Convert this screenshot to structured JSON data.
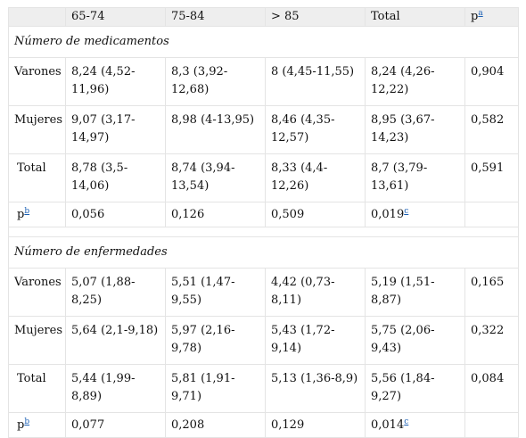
{
  "header": {
    "cols": [
      "",
      "65-74",
      "75-84",
      "> 85",
      "Total",
      "p"
    ],
    "p_sup": "a"
  },
  "sections": [
    {
      "title": "Número de medicamentos",
      "rows": [
        {
          "label": "Varones",
          "values": [
            "8,24 (4,52-11,96)",
            "8,3 (3,92-12,68)",
            "8 (4,45-11,55)",
            "8,24 (4,26-12,22)",
            "0,904"
          ]
        },
        {
          "label": "Mujeres",
          "values": [
            "9,07 (3,17-14,97)",
            "8,98 (4-13,95)",
            "8,46 (4,35-12,57)",
            "8,95 (3,67-14,23)",
            "0,582"
          ]
        },
        {
          "label": "Total",
          "values": [
            "8,78 (3,5-14,06)",
            "8,74 (3,94-13,54)",
            "8,33 (4,4-12,26)",
            "8,7 (3,79-13,61)",
            "0,591"
          ]
        }
      ],
      "prow": {
        "label": "p",
        "label_sup": "b",
        "values": [
          "0,056",
          "0,126",
          "0,509",
          "0,019"
        ],
        "total_sup": "c"
      }
    },
    {
      "title": "Número de enfermedades",
      "rows": [
        {
          "label": "Varones",
          "values": [
            "5,07 (1,88-8,25)",
            "5,51 (1,47-9,55)",
            "4,42 (0,73-8,11)",
            "5,19 (1,51-8,87)",
            "0,165"
          ]
        },
        {
          "label": "Mujeres",
          "values": [
            "5,64 (2,1-9,18)",
            "5,97 (2,16-9,78)",
            "5,43 (1,72-9,14)",
            "5,75 (2,06-9,43)",
            "0,322"
          ]
        },
        {
          "label": "Total",
          "values": [
            "5,44 (1,99-8,89)",
            "5,81 (1,91-9,71)",
            "5,13 (1,36-8,9)",
            "5,56 (1,84-9,27)",
            "0,084"
          ]
        }
      ],
      "prow": {
        "label": "p",
        "label_sup": "b",
        "values": [
          "0,077",
          "0,208",
          "0,129",
          "0,014"
        ],
        "total_sup": "c"
      }
    }
  ]
}
